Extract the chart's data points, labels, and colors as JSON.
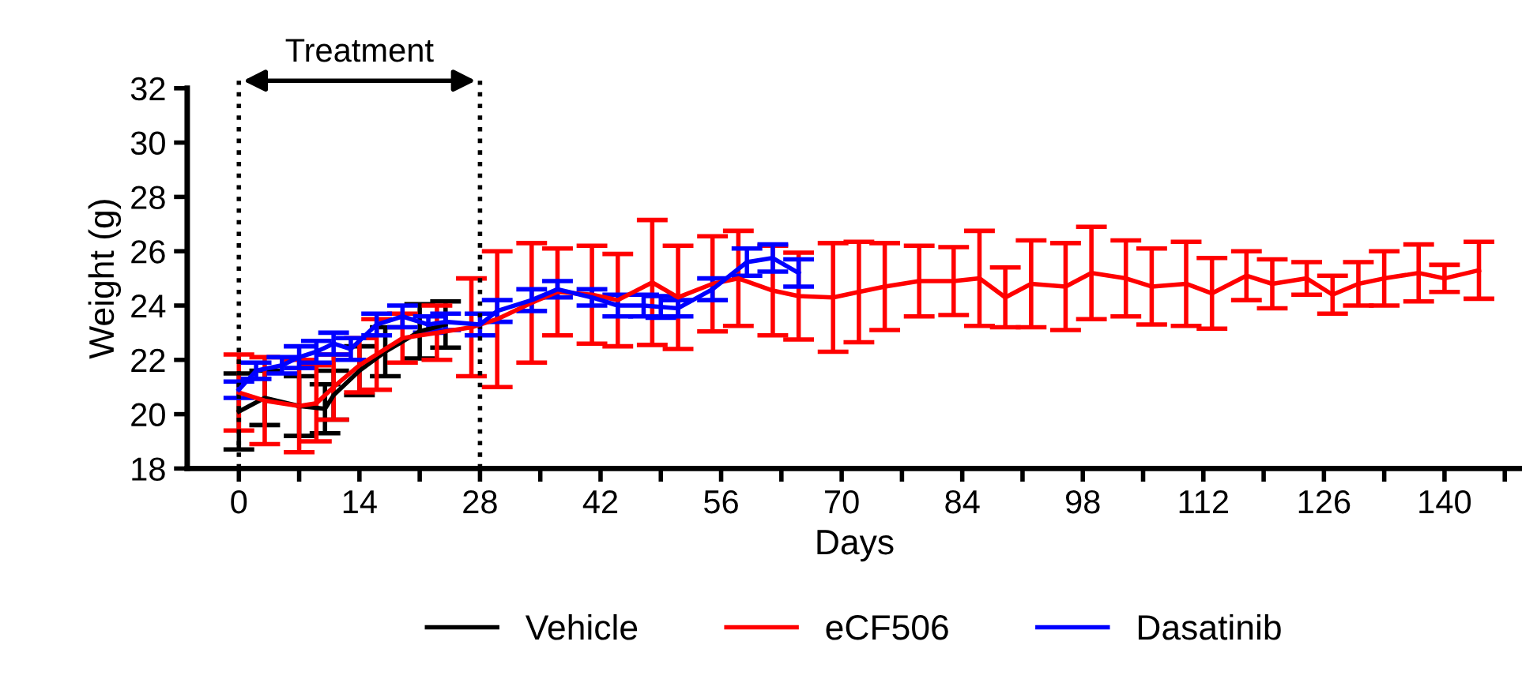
{
  "chart_data": {
    "type": "line",
    "xlabel": "Days",
    "ylabel": "Weight (g)",
    "xlim": [
      -6,
      149
    ],
    "ylim": [
      18,
      32
    ],
    "xticks": [
      0,
      {
        "value": 7,
        "label": null
      },
      14,
      {
        "value": 21,
        "label": null
      },
      28,
      {
        "value": 35,
        "label": null
      },
      42,
      {
        "value": 49,
        "label": null
      },
      56,
      {
        "value": 63,
        "label": null
      },
      70,
      {
        "value": 77,
        "label": null
      },
      84,
      {
        "value": 91,
        "label": null
      },
      98,
      {
        "value": 105,
        "label": null
      },
      112,
      {
        "value": 119,
        "label": null
      },
      126,
      {
        "value": 133,
        "label": null
      },
      140,
      {
        "value": 147,
        "label": null
      }
    ],
    "yticks": [
      18,
      20,
      22,
      24,
      26,
      28,
      30,
      32
    ],
    "grid": false,
    "legend": "bottom",
    "marker": "none",
    "line_style": "solid",
    "annotations": [
      "Treatment"
    ],
    "ref_lines": [
      {
        "axis": "x",
        "value": 0,
        "color": "#000000",
        "line_style": "dotted"
      },
      {
        "axis": "x",
        "value": 28,
        "color": "#000000",
        "line_style": "dotted"
      }
    ],
    "series": [
      {
        "name": "Vehicle",
        "color": "#000000",
        "x": [
          0,
          3,
          7,
          10,
          11,
          14,
          17,
          21,
          24
        ],
        "values": [
          20.1,
          20.6,
          20.3,
          20.2,
          20.7,
          21.6,
          22.3,
          23.05,
          23.3
        ],
        "errors": [
          1.4,
          1.0,
          1.1,
          0.9,
          0.9,
          0.9,
          0.9,
          1.0,
          0.85
        ]
      },
      {
        "name": "eCF506",
        "color": "#ff0000",
        "x": [
          0,
          3,
          7,
          9,
          11,
          14,
          16,
          19,
          23,
          27,
          30,
          34,
          37,
          41,
          44,
          48,
          51,
          55,
          58,
          62,
          65,
          69,
          72,
          75,
          79,
          83,
          86,
          89,
          92,
          96,
          99,
          103,
          106,
          110,
          113,
          117,
          120,
          124,
          127,
          130,
          133,
          137,
          140,
          144
        ],
        "values": [
          20.8,
          20.5,
          20.3,
          20.4,
          21.0,
          21.8,
          22.2,
          22.8,
          23.0,
          23.2,
          23.5,
          24.1,
          24.5,
          24.4,
          24.2,
          24.85,
          24.3,
          24.8,
          25.0,
          24.55,
          24.35,
          24.3,
          24.5,
          24.7,
          24.9,
          24.9,
          25.0,
          24.3,
          24.8,
          24.7,
          25.2,
          25.0,
          24.7,
          24.8,
          24.45,
          25.1,
          24.8,
          25.0,
          24.4,
          24.8,
          25.0,
          25.2,
          25.0,
          25.3
        ],
        "errors": [
          1.4,
          1.6,
          1.7,
          1.4,
          1.2,
          1.0,
          1.3,
          0.9,
          1.0,
          1.8,
          2.5,
          2.2,
          1.6,
          1.8,
          1.7,
          2.3,
          1.9,
          1.75,
          1.75,
          1.65,
          1.6,
          2.0,
          1.85,
          1.6,
          1.3,
          1.25,
          1.75,
          1.1,
          1.6,
          1.6,
          1.7,
          1.4,
          1.4,
          1.55,
          1.3,
          0.9,
          0.9,
          0.6,
          0.7,
          0.8,
          1.0,
          1.05,
          0.5,
          1.05
        ]
      },
      {
        "name": "Dasatinib",
        "color": "#0000ff",
        "x": [
          0,
          2,
          5,
          7,
          9,
          11,
          13,
          16,
          19,
          22,
          24,
          28,
          30,
          34,
          37,
          41,
          44,
          47,
          49,
          51,
          55,
          59,
          62,
          65
        ],
        "values": [
          20.9,
          21.6,
          21.8,
          22.1,
          22.3,
          22.6,
          22.4,
          23.3,
          23.6,
          23.3,
          23.4,
          23.3,
          23.8,
          24.2,
          24.6,
          24.3,
          24.0,
          24.0,
          23.95,
          23.9,
          24.6,
          25.6,
          25.75,
          25.2
        ],
        "errors": [
          0.3,
          0.3,
          0.3,
          0.4,
          0.4,
          0.4,
          0.4,
          0.4,
          0.4,
          0.3,
          0.3,
          0.4,
          0.4,
          0.4,
          0.3,
          0.3,
          0.4,
          0.4,
          0.4,
          0.3,
          0.4,
          0.5,
          0.5,
          0.5
        ]
      }
    ]
  }
}
